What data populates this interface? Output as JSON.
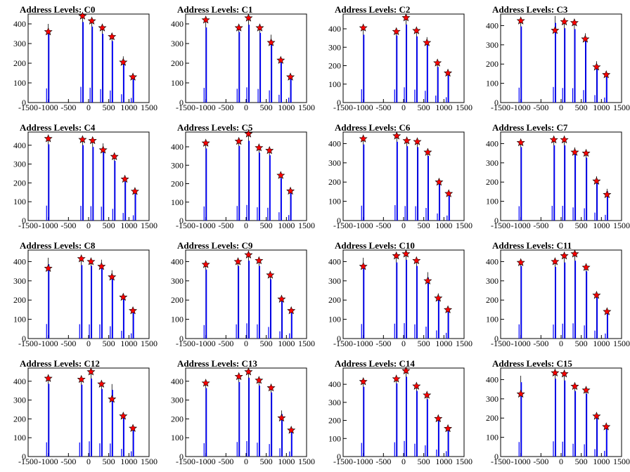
{
  "chart_data": [
    {
      "type": "histogram",
      "title": "Address Levels: C0",
      "xlim": [
        -1500,
        1500
      ],
      "ylim": [
        0,
        450
      ],
      "x_ticks": [
        -1500,
        -1000,
        -500,
        0,
        500,
        1000,
        1500
      ],
      "y_ticks": [
        0,
        100,
        200,
        300,
        400
      ],
      "peaks": [
        {
          "x": -1000,
          "y": 400,
          "marker_y": 360
        },
        {
          "x": -150,
          "y": 445,
          "marker_y": 440
        },
        {
          "x": 80,
          "y": 420,
          "marker_y": 415
        },
        {
          "x": 340,
          "y": 380,
          "marker_y": 380
        },
        {
          "x": 580,
          "y": 340,
          "marker_y": 335
        },
        {
          "x": 860,
          "y": 235,
          "marker_y": 205
        },
        {
          "x": 1100,
          "y": 130,
          "marker_y": 130
        }
      ],
      "markers": {
        "type": "star",
        "color": "#ff0000"
      },
      "bar_color": "#0000ff"
    },
    {
      "type": "histogram",
      "title": "Address Levels: C1",
      "xlim": [
        -1500,
        1500
      ],
      "ylim": [
        0,
        450
      ],
      "x_ticks": [
        -1500,
        -1000,
        -500,
        0,
        500,
        1000,
        1500
      ],
      "y_ticks": [
        0,
        100,
        200,
        300,
        400
      ],
      "peaks": [
        {
          "x": -1000,
          "y": 415,
          "marker_y": 420
        },
        {
          "x": -180,
          "y": 390,
          "marker_y": 380
        },
        {
          "x": 60,
          "y": 430,
          "marker_y": 430
        },
        {
          "x": 340,
          "y": 385,
          "marker_y": 380
        },
        {
          "x": 620,
          "y": 345,
          "marker_y": 305
        },
        {
          "x": 860,
          "y": 220,
          "marker_y": 215
        },
        {
          "x": 1100,
          "y": 140,
          "marker_y": 130
        }
      ],
      "markers": {
        "type": "star",
        "color": "#ff0000"
      },
      "bar_color": "#0000ff"
    },
    {
      "type": "histogram",
      "title": "Address Levels: C2",
      "xlim": [
        -1500,
        1500
      ],
      "ylim": [
        0,
        480
      ],
      "x_ticks": [
        -1500,
        -1000,
        -500,
        0,
        500,
        1000,
        1500
      ],
      "y_ticks": [
        0,
        100,
        200,
        300,
        400
      ],
      "peaks": [
        {
          "x": -1000,
          "y": 400,
          "marker_y": 405
        },
        {
          "x": -180,
          "y": 395,
          "marker_y": 385
        },
        {
          "x": 60,
          "y": 460,
          "marker_y": 460
        },
        {
          "x": 320,
          "y": 390,
          "marker_y": 390
        },
        {
          "x": 580,
          "y": 355,
          "marker_y": 325
        },
        {
          "x": 840,
          "y": 210,
          "marker_y": 215
        },
        {
          "x": 1100,
          "y": 160,
          "marker_y": 160
        }
      ],
      "markers": {
        "type": "star",
        "color": "#ff0000"
      },
      "bar_color": "#0000ff"
    },
    {
      "type": "histogram",
      "title": "Address Levels: C3",
      "xlim": [
        -1500,
        1500
      ],
      "ylim": [
        0,
        460
      ],
      "x_ticks": [
        -1500,
        -1000,
        -500,
        0,
        500,
        1000,
        1500
      ],
      "y_ticks": [
        0,
        100,
        200,
        300,
        400
      ],
      "peaks": [
        {
          "x": -1000,
          "y": 430,
          "marker_y": 425
        },
        {
          "x": -150,
          "y": 450,
          "marker_y": 375
        },
        {
          "x": 80,
          "y": 420,
          "marker_y": 420
        },
        {
          "x": 330,
          "y": 415,
          "marker_y": 415
        },
        {
          "x": 600,
          "y": 360,
          "marker_y": 330
        },
        {
          "x": 880,
          "y": 215,
          "marker_y": 185
        },
        {
          "x": 1120,
          "y": 145,
          "marker_y": 145
        }
      ],
      "markers": {
        "type": "star",
        "color": "#ff0000"
      },
      "bar_color": "#0000ff"
    },
    {
      "type": "histogram",
      "title": "Address Levels: C4",
      "xlim": [
        -1500,
        1500
      ],
      "ylim": [
        0,
        470
      ],
      "x_ticks": [
        -1500,
        -1000,
        -500,
        0,
        500,
        1000,
        1500
      ],
      "y_ticks": [
        0,
        100,
        200,
        300,
        400
      ],
      "peaks": [
        {
          "x": -1000,
          "y": 440,
          "marker_y": 435
        },
        {
          "x": -150,
          "y": 435,
          "marker_y": 430
        },
        {
          "x": 100,
          "y": 425,
          "marker_y": 425
        },
        {
          "x": 360,
          "y": 410,
          "marker_y": 375
        },
        {
          "x": 640,
          "y": 345,
          "marker_y": 340
        },
        {
          "x": 900,
          "y": 225,
          "marker_y": 220
        },
        {
          "x": 1150,
          "y": 155,
          "marker_y": 155
        }
      ],
      "markers": {
        "type": "star",
        "color": "#ff0000"
      },
      "bar_color": "#0000ff"
    },
    {
      "type": "histogram",
      "title": "Address Levels: C5",
      "xlim": [
        -1500,
        1500
      ],
      "ylim": [
        0,
        480
      ],
      "x_ticks": [
        -1500,
        -1000,
        -500,
        0,
        500,
        1000,
        1500
      ],
      "y_ticks": [
        0,
        100,
        200,
        300,
        400
      ],
      "peaks": [
        {
          "x": -1000,
          "y": 425,
          "marker_y": 420
        },
        {
          "x": -180,
          "y": 440,
          "marker_y": 430
        },
        {
          "x": 60,
          "y": 470,
          "marker_y": 470
        },
        {
          "x": 320,
          "y": 400,
          "marker_y": 395
        },
        {
          "x": 580,
          "y": 385,
          "marker_y": 380
        },
        {
          "x": 860,
          "y": 250,
          "marker_y": 245
        },
        {
          "x": 1100,
          "y": 165,
          "marker_y": 160
        }
      ],
      "markers": {
        "type": "star",
        "color": "#ff0000"
      },
      "bar_color": "#0000ff"
    },
    {
      "type": "histogram",
      "title": "Address Levels: C6",
      "xlim": [
        -1500,
        1500
      ],
      "ylim": [
        0,
        460
      ],
      "x_ticks": [
        -1500,
        -1000,
        -500,
        0,
        500,
        1000,
        1500
      ],
      "y_ticks": [
        0,
        100,
        200,
        300,
        400
      ],
      "peaks": [
        {
          "x": -1000,
          "y": 430,
          "marker_y": 425
        },
        {
          "x": -170,
          "y": 445,
          "marker_y": 440
        },
        {
          "x": 80,
          "y": 420,
          "marker_y": 415
        },
        {
          "x": 340,
          "y": 415,
          "marker_y": 410
        },
        {
          "x": 600,
          "y": 365,
          "marker_y": 355
        },
        {
          "x": 880,
          "y": 205,
          "marker_y": 200
        },
        {
          "x": 1120,
          "y": 145,
          "marker_y": 140
        }
      ],
      "markers": {
        "type": "star",
        "color": "#ff0000"
      },
      "bar_color": "#0000ff"
    },
    {
      "type": "histogram",
      "title": "Address Levels: C7",
      "xlim": [
        -1500,
        1500
      ],
      "ylim": [
        0,
        460
      ],
      "x_ticks": [
        -1500,
        -1000,
        -500,
        0,
        500,
        1000,
        1500
      ],
      "y_ticks": [
        0,
        100,
        200,
        300,
        400
      ],
      "peaks": [
        {
          "x": -1000,
          "y": 415,
          "marker_y": 405
        },
        {
          "x": -180,
          "y": 425,
          "marker_y": 420
        },
        {
          "x": 80,
          "y": 425,
          "marker_y": 420
        },
        {
          "x": 340,
          "y": 380,
          "marker_y": 355
        },
        {
          "x": 620,
          "y": 355,
          "marker_y": 350
        },
        {
          "x": 880,
          "y": 230,
          "marker_y": 205
        },
        {
          "x": 1140,
          "y": 165,
          "marker_y": 135
        }
      ],
      "markers": {
        "type": "star",
        "color": "#ff0000"
      },
      "bar_color": "#0000ff"
    },
    {
      "type": "histogram",
      "title": "Address Levels: C8",
      "xlim": [
        -1500,
        1500
      ],
      "ylim": [
        0,
        460
      ],
      "x_ticks": [
        -1500,
        -1000,
        -500,
        0,
        500,
        1000,
        1500
      ],
      "y_ticks": [
        0,
        100,
        200,
        300,
        400
      ],
      "peaks": [
        {
          "x": -1000,
          "y": 420,
          "marker_y": 365
        },
        {
          "x": -180,
          "y": 415,
          "marker_y": 415
        },
        {
          "x": 60,
          "y": 410,
          "marker_y": 400
        },
        {
          "x": 320,
          "y": 410,
          "marker_y": 375
        },
        {
          "x": 580,
          "y": 355,
          "marker_y": 320
        },
        {
          "x": 860,
          "y": 225,
          "marker_y": 215
        },
        {
          "x": 1100,
          "y": 150,
          "marker_y": 145
        }
      ],
      "markers": {
        "type": "star",
        "color": "#ff0000"
      },
      "bar_color": "#0000ff"
    },
    {
      "type": "histogram",
      "title": "Address Levels: C9",
      "xlim": [
        -1500,
        1500
      ],
      "ylim": [
        0,
        460
      ],
      "x_ticks": [
        -1500,
        -1000,
        -500,
        0,
        500,
        1000,
        1500
      ],
      "y_ticks": [
        0,
        100,
        200,
        300,
        400
      ],
      "peaks": [
        {
          "x": -1000,
          "y": 390,
          "marker_y": 385
        },
        {
          "x": -200,
          "y": 410,
          "marker_y": 400
        },
        {
          "x": 60,
          "y": 440,
          "marker_y": 435
        },
        {
          "x": 320,
          "y": 410,
          "marker_y": 405
        },
        {
          "x": 600,
          "y": 335,
          "marker_y": 330
        },
        {
          "x": 880,
          "y": 210,
          "marker_y": 205
        },
        {
          "x": 1120,
          "y": 150,
          "marker_y": 145
        }
      ],
      "markers": {
        "type": "star",
        "color": "#ff0000"
      },
      "bar_color": "#0000ff"
    },
    {
      "type": "histogram",
      "title": "Address Levels: C10",
      "xlim": [
        -1500,
        1500
      ],
      "ylim": [
        0,
        460
      ],
      "x_ticks": [
        -1500,
        -1000,
        -500,
        0,
        500,
        1000,
        1500
      ],
      "y_ticks": [
        0,
        100,
        200,
        300,
        400
      ],
      "peaks": [
        {
          "x": -1000,
          "y": 420,
          "marker_y": 375
        },
        {
          "x": -180,
          "y": 430,
          "marker_y": 430
        },
        {
          "x": 60,
          "y": 445,
          "marker_y": 440
        },
        {
          "x": 320,
          "y": 410,
          "marker_y": 405
        },
        {
          "x": 600,
          "y": 345,
          "marker_y": 300
        },
        {
          "x": 860,
          "y": 235,
          "marker_y": 210
        },
        {
          "x": 1100,
          "y": 165,
          "marker_y": 150
        }
      ],
      "markers": {
        "type": "star",
        "color": "#ff0000"
      },
      "bar_color": "#0000ff"
    },
    {
      "type": "histogram",
      "title": "Address Levels: C11",
      "xlim": [
        -1500,
        1500
      ],
      "ylim": [
        0,
        460
      ],
      "x_ticks": [
        -1500,
        -1000,
        -500,
        0,
        500,
        1000,
        1500
      ],
      "y_ticks": [
        0,
        100,
        200,
        300,
        400
      ],
      "peaks": [
        {
          "x": -1000,
          "y": 410,
          "marker_y": 395
        },
        {
          "x": -150,
          "y": 405,
          "marker_y": 400
        },
        {
          "x": 80,
          "y": 430,
          "marker_y": 430
        },
        {
          "x": 340,
          "y": 440,
          "marker_y": 440
        },
        {
          "x": 620,
          "y": 380,
          "marker_y": 370
        },
        {
          "x": 880,
          "y": 230,
          "marker_y": 225
        },
        {
          "x": 1140,
          "y": 145,
          "marker_y": 140
        }
      ],
      "markers": {
        "type": "star",
        "color": "#ff0000"
      },
      "bar_color": "#0000ff"
    },
    {
      "type": "histogram",
      "title": "Address Levels: C12",
      "xlim": [
        -1500,
        1500
      ],
      "ylim": [
        0,
        470
      ],
      "x_ticks": [
        -1500,
        -1000,
        -500,
        0,
        500,
        1000,
        1500
      ],
      "y_ticks": [
        0,
        100,
        200,
        300,
        400
      ],
      "peaks": [
        {
          "x": -1000,
          "y": 420,
          "marker_y": 415
        },
        {
          "x": -180,
          "y": 415,
          "marker_y": 410
        },
        {
          "x": 60,
          "y": 450,
          "marker_y": 450
        },
        {
          "x": 320,
          "y": 390,
          "marker_y": 385
        },
        {
          "x": 580,
          "y": 385,
          "marker_y": 305
        },
        {
          "x": 860,
          "y": 225,
          "marker_y": 215
        },
        {
          "x": 1100,
          "y": 155,
          "marker_y": 150
        }
      ],
      "markers": {
        "type": "star",
        "color": "#ff0000"
      },
      "bar_color": "#0000ff"
    },
    {
      "type": "histogram",
      "title": "Address Levels: C13",
      "xlim": [
        -1500,
        1500
      ],
      "ylim": [
        0,
        470
      ],
      "x_ticks": [
        -1500,
        -1000,
        -500,
        0,
        500,
        1000,
        1500
      ],
      "y_ticks": [
        0,
        100,
        200,
        300,
        400
      ],
      "peaks": [
        {
          "x": -1000,
          "y": 395,
          "marker_y": 390
        },
        {
          "x": -180,
          "y": 430,
          "marker_y": 425
        },
        {
          "x": 60,
          "y": 455,
          "marker_y": 450
        },
        {
          "x": 320,
          "y": 410,
          "marker_y": 405
        },
        {
          "x": 620,
          "y": 370,
          "marker_y": 365
        },
        {
          "x": 880,
          "y": 245,
          "marker_y": 205
        },
        {
          "x": 1120,
          "y": 150,
          "marker_y": 140
        }
      ],
      "markers": {
        "type": "star",
        "color": "#ff0000"
      },
      "bar_color": "#0000ff"
    },
    {
      "type": "histogram",
      "title": "Address Levels: C14",
      "xlim": [
        -1500,
        1500
      ],
      "ylim": [
        0,
        490
      ],
      "x_ticks": [
        -1500,
        -1000,
        -500,
        0,
        500,
        1000,
        1500
      ],
      "y_ticks": [
        0,
        100,
        200,
        300,
        400
      ],
      "peaks": [
        {
          "x": -1000,
          "y": 420,
          "marker_y": 415
        },
        {
          "x": -180,
          "y": 440,
          "marker_y": 430
        },
        {
          "x": 60,
          "y": 480,
          "marker_y": 475
        },
        {
          "x": 320,
          "y": 395,
          "marker_y": 390
        },
        {
          "x": 580,
          "y": 345,
          "marker_y": 340
        },
        {
          "x": 860,
          "y": 215,
          "marker_y": 210
        },
        {
          "x": 1100,
          "y": 165,
          "marker_y": 155
        }
      ],
      "markers": {
        "type": "star",
        "color": "#ff0000"
      },
      "bar_color": "#0000ff"
    },
    {
      "type": "histogram",
      "title": "Address Levels: C15",
      "xlim": [
        -1500,
        1500
      ],
      "ylim": [
        0,
        460
      ],
      "x_ticks": [
        -1500,
        -1000,
        -500,
        0,
        500,
        1000,
        1500
      ],
      "y_ticks": [
        0,
        100,
        200,
        300,
        400
      ],
      "peaks": [
        {
          "x": -1000,
          "y": 420,
          "marker_y": 325
        },
        {
          "x": -150,
          "y": 440,
          "marker_y": 435
        },
        {
          "x": 80,
          "y": 430,
          "marker_y": 430
        },
        {
          "x": 340,
          "y": 370,
          "marker_y": 365
        },
        {
          "x": 620,
          "y": 355,
          "marker_y": 345
        },
        {
          "x": 880,
          "y": 215,
          "marker_y": 210
        },
        {
          "x": 1120,
          "y": 165,
          "marker_y": 155
        }
      ],
      "markers": {
        "type": "star",
        "color": "#ff0000"
      },
      "bar_color": "#0000ff"
    }
  ]
}
